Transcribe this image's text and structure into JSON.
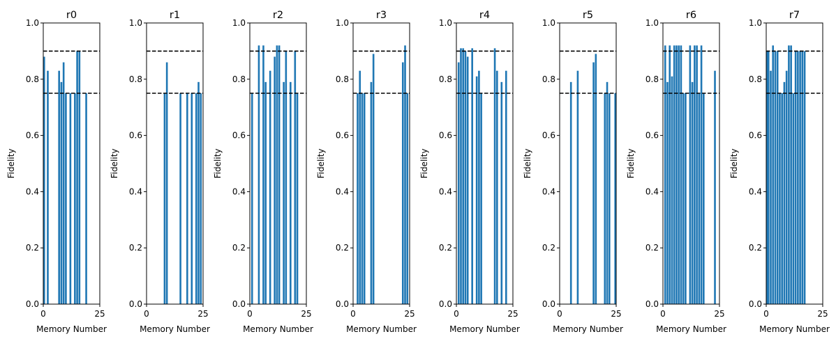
{
  "chart_data": [
    {
      "type": "bar",
      "title": "r0",
      "xlabel": "Memory Number",
      "ylabel": "Fidelity",
      "xlim": [
        0,
        25
      ],
      "ylim": [
        0,
        1.0
      ],
      "xticks": [
        "0",
        "25"
      ],
      "yticks": [
        "0.0",
        "0.2",
        "0.4",
        "0.6",
        "0.8",
        "1.0"
      ],
      "reference_lines": [
        0.9,
        0.75
      ],
      "x": [
        0,
        2,
        7,
        8,
        9,
        10,
        12,
        14,
        15,
        16,
        19
      ],
      "values": [
        0.88,
        0.83,
        0.83,
        0.79,
        0.86,
        0.75,
        0.75,
        0.75,
        0.9,
        0.9,
        0.75
      ]
    },
    {
      "type": "bar",
      "title": "r1",
      "xlabel": "Memory Number",
      "ylabel": "Fidelity",
      "xlim": [
        0,
        25
      ],
      "ylim": [
        0,
        1.0
      ],
      "xticks": [
        "0",
        "25"
      ],
      "yticks": [
        "0.0",
        "0.2",
        "0.4",
        "0.6",
        "0.8",
        "1.0"
      ],
      "reference_lines": [
        0.9,
        0.75
      ],
      "x": [
        8,
        9,
        15,
        18,
        20,
        22,
        23,
        24
      ],
      "values": [
        0.75,
        0.86,
        0.75,
        0.75,
        0.75,
        0.75,
        0.79,
        0.75
      ]
    },
    {
      "type": "bar",
      "title": "r2",
      "xlabel": "Memory Number",
      "ylabel": "Fidelity",
      "xlim": [
        0,
        25
      ],
      "ylim": [
        0,
        1.0
      ],
      "xticks": [
        "0",
        "25"
      ],
      "yticks": [
        "0.0",
        "0.2",
        "0.4",
        "0.6",
        "0.8",
        "1.0"
      ],
      "reference_lines": [
        0.9,
        0.75
      ],
      "x": [
        1,
        4,
        6,
        7,
        9,
        11,
        12,
        13,
        15,
        16,
        18,
        20,
        21
      ],
      "values": [
        0.75,
        0.92,
        0.92,
        0.79,
        0.83,
        0.88,
        0.92,
        0.92,
        0.79,
        0.9,
        0.79,
        0.9,
        0.75
      ]
    },
    {
      "type": "bar",
      "title": "r3",
      "xlabel": "Memory Number",
      "ylabel": "Fidelity",
      "xlim": [
        0,
        25
      ],
      "ylim": [
        0,
        1.0
      ],
      "xticks": [
        "0",
        "25"
      ],
      "yticks": [
        "0.0",
        "0.2",
        "0.4",
        "0.6",
        "0.8",
        "1.0"
      ],
      "reference_lines": [
        0.9,
        0.75
      ],
      "x": [
        2,
        3,
        4,
        5,
        8,
        9,
        22,
        23,
        24
      ],
      "values": [
        0.75,
        0.83,
        0.75,
        0.75,
        0.79,
        0.89,
        0.86,
        0.92,
        0.75
      ]
    },
    {
      "type": "bar",
      "title": "r4",
      "xlabel": "Memory Number",
      "ylabel": "Fidelity",
      "xlim": [
        0,
        25
      ],
      "ylim": [
        0,
        1.0
      ],
      "xticks": [
        "0",
        "25"
      ],
      "yticks": [
        "0.0",
        "0.2",
        "0.4",
        "0.6",
        "0.8",
        "1.0"
      ],
      "reference_lines": [
        0.9,
        0.75
      ],
      "x": [
        1,
        2,
        3,
        4,
        5,
        7,
        9,
        10,
        11,
        17,
        18,
        20,
        22
      ],
      "values": [
        0.86,
        0.91,
        0.91,
        0.9,
        0.88,
        0.91,
        0.81,
        0.83,
        0.75,
        0.91,
        0.83,
        0.79,
        0.83
      ]
    },
    {
      "type": "bar",
      "title": "r5",
      "xlabel": "Memory Number",
      "ylabel": "Fidelity",
      "xlim": [
        0,
        25
      ],
      "ylim": [
        0,
        1.0
      ],
      "xticks": [
        "0",
        "25"
      ],
      "yticks": [
        "0.0",
        "0.2",
        "0.4",
        "0.6",
        "0.8",
        "1.0"
      ],
      "reference_lines": [
        0.9,
        0.75
      ],
      "x": [
        5,
        8,
        15,
        16,
        20,
        21,
        22,
        25
      ],
      "values": [
        0.79,
        0.83,
        0.86,
        0.89,
        0.75,
        0.79,
        0.75,
        0.75
      ]
    },
    {
      "type": "bar",
      "title": "r6",
      "xlabel": "Memory Number",
      "ylabel": "Fidelity",
      "xlim": [
        0,
        25
      ],
      "ylim": [
        0,
        1.0
      ],
      "xticks": [
        "0",
        "25"
      ],
      "yticks": [
        "0.0",
        "0.2",
        "0.4",
        "0.6",
        "0.8",
        "1.0"
      ],
      "reference_lines": [
        0.9,
        0.75
      ],
      "x": [
        1,
        2,
        3,
        4,
        5,
        6,
        7,
        8,
        9,
        10,
        12,
        13,
        14,
        15,
        16,
        17,
        18,
        23
      ],
      "values": [
        0.92,
        0.79,
        0.92,
        0.81,
        0.92,
        0.92,
        0.92,
        0.92,
        0.75,
        0.75,
        0.92,
        0.79,
        0.92,
        0.92,
        0.75,
        0.92,
        0.75,
        0.83
      ]
    },
    {
      "type": "bar",
      "title": "r7",
      "xlabel": "Memory Number",
      "ylabel": "Fidelity",
      "xlim": [
        0,
        25
      ],
      "ylim": [
        0,
        1.0
      ],
      "xticks": [
        "0",
        "25"
      ],
      "yticks": [
        "0.0",
        "0.2",
        "0.4",
        "0.6",
        "0.8",
        "1.0"
      ],
      "reference_lines": [
        0.9,
        0.75
      ],
      "x": [
        0,
        1,
        2,
        3,
        4,
        5,
        6,
        7,
        8,
        9,
        10,
        11,
        12,
        13,
        14,
        15,
        16,
        17
      ],
      "values": [
        0.9,
        0.9,
        0.83,
        0.92,
        0.9,
        0.9,
        0.75,
        0.75,
        0.79,
        0.83,
        0.92,
        0.92,
        0.75,
        0.9,
        0.9,
        0.9,
        0.9,
        0.9
      ]
    }
  ],
  "colors": {
    "bar": "#1f77b4",
    "reference_line": "#000000",
    "axis": "#000000"
  }
}
